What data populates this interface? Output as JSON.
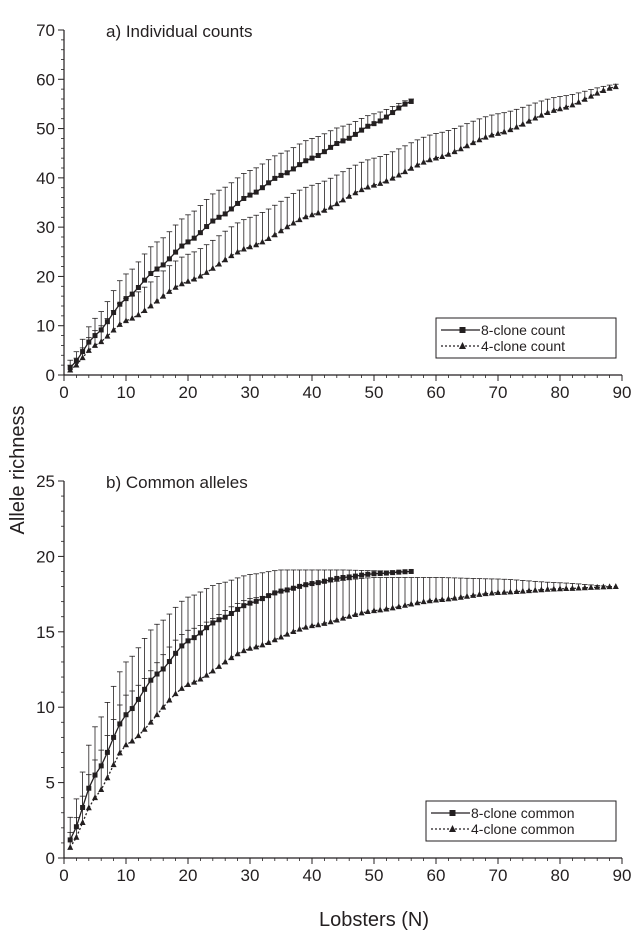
{
  "figure": {
    "shared_ylabel": "Allele richness",
    "shared_xlabel": "Lobsters (N)"
  },
  "chart_data": [
    {
      "type": "line",
      "title": "a) Individual counts",
      "xlabel": "Lobsters (N)",
      "ylabel": "Allele richness",
      "xlim": [
        0,
        90
      ],
      "ylim": [
        0,
        70
      ],
      "xticks": [
        0,
        10,
        20,
        30,
        40,
        50,
        60,
        70,
        80,
        90
      ],
      "yticks": [
        0,
        10,
        20,
        30,
        40,
        50,
        60,
        70
      ],
      "error_bars": "upper",
      "legend_position": "lower-right",
      "series": [
        {
          "name": "8-clone count",
          "marker": "square",
          "line": "solid",
          "n_max": 56,
          "x": [
            1,
            5,
            10,
            15,
            20,
            25,
            30,
            35,
            40,
            45,
            50,
            56
          ],
          "y": [
            1.5,
            8,
            15.5,
            21.5,
            27,
            32,
            36.5,
            40.5,
            44,
            47.5,
            51,
            55.5
          ],
          "error": [
            1.5,
            3.5,
            5,
            5.5,
            5.5,
            5.5,
            5,
            4.5,
            4,
            3,
            2,
            0.5
          ]
        },
        {
          "name": "4-clone count",
          "marker": "triangle",
          "line": "dotted",
          "n_max": 89,
          "x": [
            1,
            5,
            10,
            20,
            30,
            40,
            50,
            60,
            70,
            80,
            89
          ],
          "y": [
            1,
            6,
            11,
            19,
            26,
            32.5,
            38.5,
            44,
            49,
            54,
            58.5
          ],
          "error": [
            1,
            3,
            4.5,
            5.5,
            6,
            6,
            5.5,
            5,
            4,
            2.5,
            0.5
          ]
        }
      ]
    },
    {
      "type": "line",
      "title": "b) Common alleles",
      "xlabel": "Lobsters (N)",
      "ylabel": "Allele richness",
      "xlim": [
        0,
        90
      ],
      "ylim": [
        0,
        25
      ],
      "xticks": [
        0,
        10,
        20,
        30,
        40,
        50,
        60,
        70,
        80,
        90
      ],
      "yticks": [
        0,
        5,
        10,
        15,
        20,
        25
      ],
      "error_bars": "upper",
      "legend_position": "lower-right",
      "series": [
        {
          "name": "8-clone common",
          "marker": "square",
          "line": "solid",
          "n_max": 56,
          "x": [
            1,
            5,
            10,
            15,
            20,
            25,
            30,
            35,
            40,
            45,
            50,
            56
          ],
          "y": [
            1.2,
            5.5,
            9.5,
            12.2,
            14.4,
            15.8,
            16.9,
            17.7,
            18.2,
            18.6,
            18.85,
            19
          ],
          "error": [
            1.5,
            3.2,
            3.5,
            3.3,
            2.9,
            2.4,
            1.9,
            1.4,
            0.9,
            0.5,
            0.2,
            0
          ]
        },
        {
          "name": "4-clone common",
          "marker": "triangle",
          "line": "dotted",
          "n_max": 89,
          "x": [
            1,
            5,
            10,
            20,
            30,
            40,
            50,
            60,
            70,
            80,
            89
          ],
          "y": [
            0.7,
            4,
            7.5,
            11.5,
            13.9,
            15.4,
            16.4,
            17.1,
            17.6,
            17.85,
            18
          ],
          "error": [
            1,
            2.5,
            3.3,
            3.6,
            3.3,
            2.8,
            2.2,
            1.5,
            0.9,
            0.4,
            0
          ]
        }
      ]
    }
  ]
}
